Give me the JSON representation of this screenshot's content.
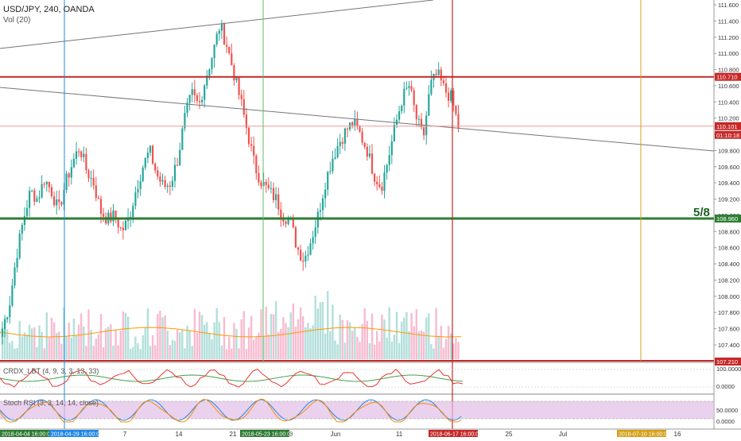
{
  "header": {
    "symbol_line": "USD/JPY, 240, OANDA",
    "volume_label": "Vol (20)",
    "cci_label": "CRDX_LBT (4, 9, 3, 3, 13, 33)",
    "stoch_label": "Stoch RSI (3, 3, 14, 14, close)"
  },
  "price_axis": {
    "ticks": [
      "111.600",
      "111.400",
      "111.200",
      "111.000",
      "110.800",
      "110.600",
      "110.400",
      "110.200",
      "110.000",
      "109.800",
      "109.600",
      "109.400",
      "109.200",
      "109.000",
      "108.800",
      "108.600",
      "108.400",
      "108.200",
      "108.000",
      "107.800",
      "107.600",
      "107.400"
    ],
    "badges": [
      {
        "label": "110.710",
        "color": "#c62828"
      },
      {
        "label": "110.101",
        "color": "#c62828"
      },
      {
        "label": "01:10:18",
        "color": "#c62828"
      },
      {
        "label": "108.960",
        "color": "#2e7d32"
      },
      {
        "label": "107.210",
        "color": "#c62828"
      }
    ]
  },
  "fib_label": "5/8",
  "cci_axis": [
    "100.0000",
    "0.0000"
  ],
  "stoch_axis": [
    "50.0000",
    "0.0000"
  ],
  "time_axis": {
    "ticks": [
      "7",
      "14",
      "21",
      "28",
      "Jun",
      "11",
      "25",
      "Jul",
      "16"
    ],
    "date_badges": [
      {
        "label": "2018-04-04 16:00:00",
        "color": "#2e7d32"
      },
      {
        "label": "2018-04-29 16:00:00",
        "color": "#1e88e5"
      },
      {
        "label": "2018-05-23 16:00:00",
        "color": "#2e7d32"
      },
      {
        "label": "2018-06-17 16:00:00",
        "color": "#c62828"
      },
      {
        "label": "2018-07-10 16:00:00",
        "color": "#d4a017"
      }
    ]
  },
  "colors": {
    "up": "#26a69a",
    "down": "#ef5350",
    "vol_up": "#b2dfdb",
    "vol_down": "#f8bbd0",
    "red_line": "#c62828",
    "green_line": "#2e7d32",
    "blue_line": "#1e88e5",
    "gold_line": "#d4a017",
    "stoch_band": "#e1bee7"
  },
  "chart_data": {
    "type": "candlestick",
    "title": "USD/JPY, 240, OANDA",
    "ylim": [
      107.2,
      111.72
    ],
    "horizontal_levels": [
      {
        "price": 110.71,
        "color": "red"
      },
      {
        "price": 108.96,
        "color": "green",
        "label": "5/8"
      },
      {
        "price": 110.101,
        "color": "red",
        "style": "thin"
      }
    ],
    "vertical_markers": [
      "2018-04-29 16:00:00",
      "2018-05-23 16:00:00",
      "2018-06-17 16:00:00",
      "2018-07-10 16:00:00"
    ],
    "close_path": [
      107.6,
      107.9,
      108.5,
      108.95,
      109.3,
      109.2,
      109.45,
      109.3,
      109.05,
      109.4,
      109.65,
      109.85,
      109.55,
      109.4,
      109.05,
      108.95,
      109.0,
      108.8,
      108.95,
      109.3,
      109.6,
      109.8,
      109.5,
      109.35,
      109.4,
      109.7,
      110.2,
      110.5,
      110.35,
      110.7,
      111.0,
      111.35,
      111.1,
      110.75,
      110.4,
      110.0,
      109.6,
      109.4,
      109.3,
      109.2,
      109.0,
      108.95,
      108.6,
      108.45,
      108.7,
      109.0,
      109.4,
      109.7,
      109.9,
      110.05,
      110.15,
      110.0,
      109.8,
      109.5,
      109.35,
      109.7,
      110.1,
      110.45,
      110.6,
      110.2,
      109.95,
      110.6,
      110.75,
      110.55,
      110.45,
      110.1
    ],
    "volume_range": [
      0,
      100
    ]
  }
}
